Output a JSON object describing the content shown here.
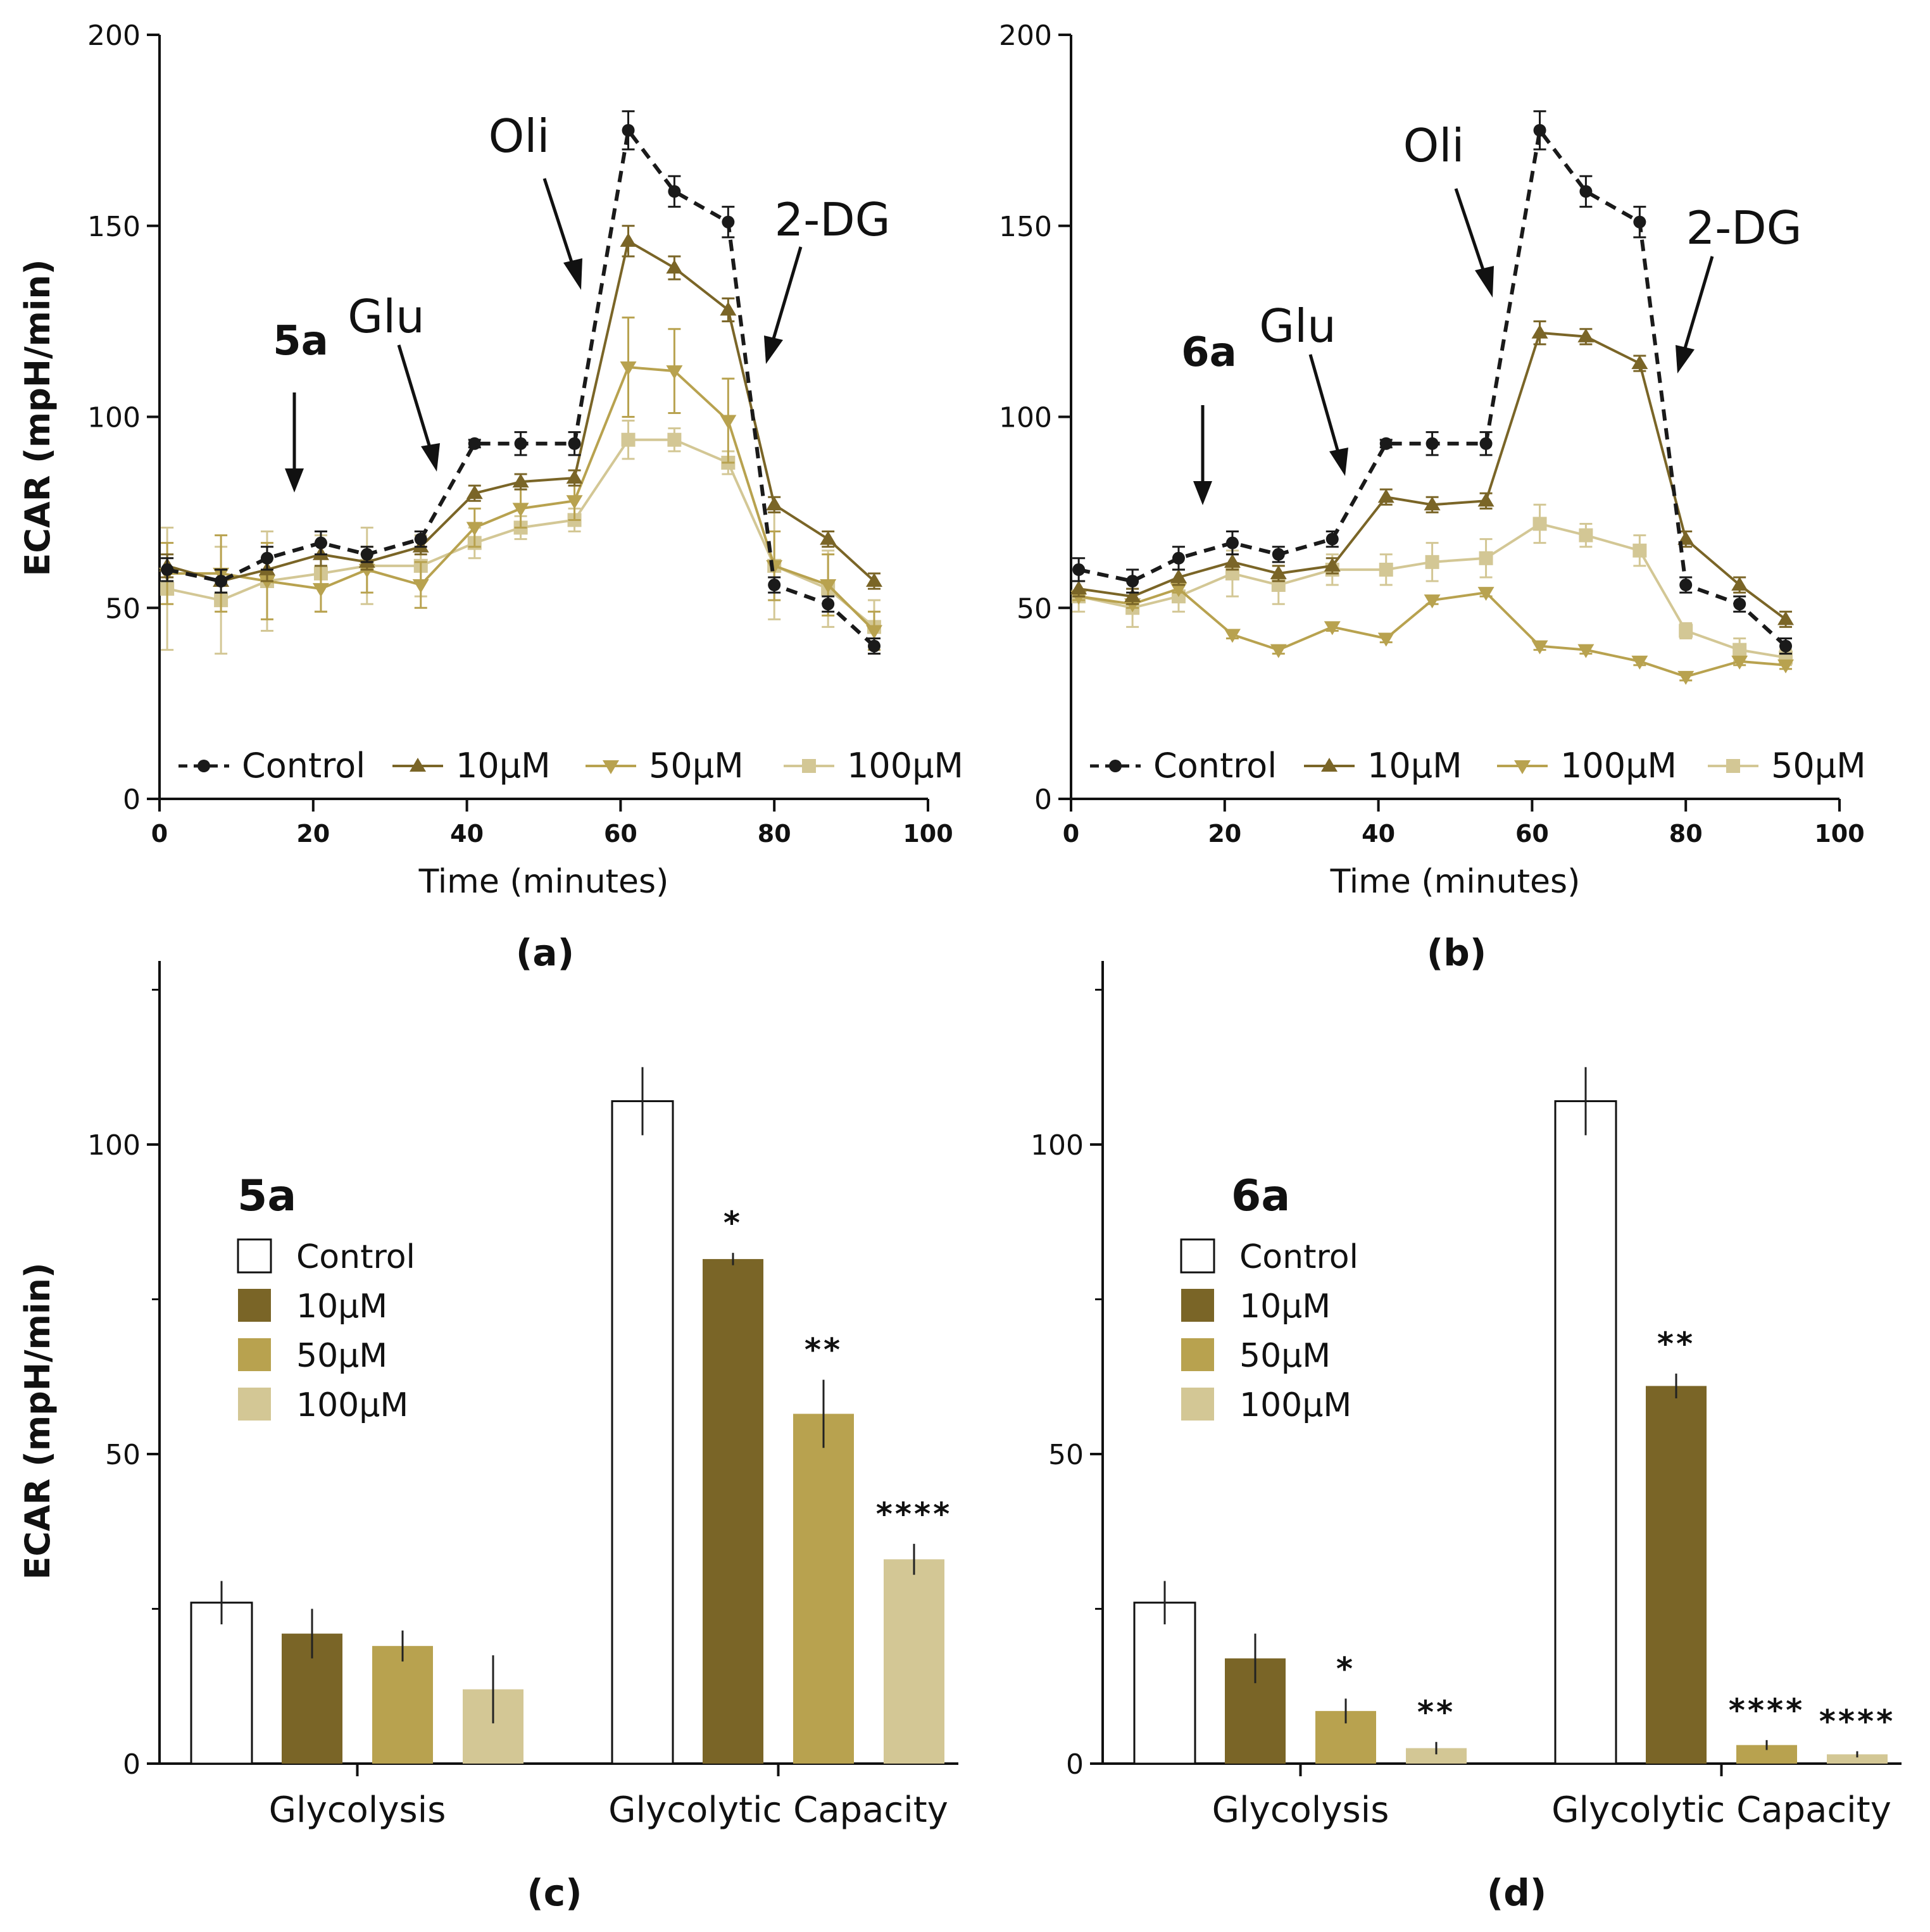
{
  "colors": {
    "control_line": "#1a1a1a",
    "control_bar": "#ffffff",
    "c10": "#7a6527",
    "c50": "#b8a24f",
    "c100": "#d3c795"
  },
  "chart_data": [
    {
      "id": "a",
      "type": "line",
      "panel_label": "(a)",
      "compound_label": "5a",
      "xlabel": "Time (minutes)",
      "ylabel": "ECAR (mpH/min)",
      "xlim": [
        0,
        100
      ],
      "ylim": [
        0,
        200
      ],
      "x_ticks": [
        "0",
        "20",
        "40",
        "60",
        "80",
        "100"
      ],
      "y_ticks": [
        "0",
        "50",
        "100",
        "150",
        "200"
      ],
      "annotations": [
        "Glu",
        "Oli",
        "2-DG"
      ],
      "x": [
        1,
        8,
        14,
        21,
        27,
        34,
        41,
        47,
        54,
        61,
        67,
        74,
        80,
        87,
        93
      ],
      "series": [
        {
          "name": "Control",
          "legend": "Control",
          "marker": "circle",
          "dashed": true,
          "values": [
            60,
            57,
            63,
            67,
            64,
            68,
            93,
            93,
            93,
            175,
            159,
            151,
            56,
            51,
            40
          ],
          "errors": [
            3,
            3,
            3,
            3,
            2,
            2,
            1,
            3,
            3,
            5,
            4,
            4,
            2,
            2,
            2
          ]
        },
        {
          "name": "10µM",
          "legend": "10µM",
          "marker": "triangle-up",
          "dashed": false,
          "values": [
            61,
            57,
            60,
            64,
            62,
            66,
            80,
            83,
            84,
            146,
            139,
            128,
            77,
            68,
            57
          ],
          "errors": [
            3,
            3,
            3,
            3,
            2,
            2,
            2,
            2,
            2,
            4,
            3,
            3,
            2,
            2,
            2
          ]
        },
        {
          "name": "50µM",
          "legend": "50µM",
          "marker": "triangle-down",
          "dashed": false,
          "values": [
            59,
            59,
            57,
            55,
            60,
            56,
            71,
            76,
            78,
            113,
            112,
            99,
            61,
            56,
            44
          ],
          "errors": [
            8,
            10,
            10,
            6,
            6,
            6,
            5,
            5,
            5,
            13,
            11,
            11,
            9,
            8,
            5
          ]
        },
        {
          "name": "100µM",
          "legend": "100µM",
          "marker": "square",
          "dashed": false,
          "values": [
            55,
            52,
            57,
            59,
            61,
            61,
            67,
            71,
            73,
            94,
            94,
            88,
            61,
            55,
            45
          ],
          "errors": [
            16,
            14,
            13,
            10,
            10,
            8,
            4,
            3,
            3,
            5,
            3,
            3,
            14,
            10,
            7
          ]
        }
      ]
    },
    {
      "id": "b",
      "type": "line",
      "panel_label": "(b)",
      "compound_label": "6a",
      "xlabel": "Time (minutes)",
      "ylabel": "",
      "xlim": [
        0,
        100
      ],
      "ylim": [
        0,
        200
      ],
      "x_ticks": [
        "0",
        "20",
        "40",
        "60",
        "80",
        "100"
      ],
      "y_ticks": [
        "0",
        "50",
        "100",
        "150",
        "200"
      ],
      "annotations": [
        "Glu",
        "Oli",
        "2-DG"
      ],
      "x": [
        1,
        8,
        14,
        21,
        27,
        34,
        41,
        47,
        54,
        61,
        67,
        74,
        80,
        87,
        93
      ],
      "series": [
        {
          "name": "Control",
          "legend": "Control",
          "marker": "circle",
          "dashed": true,
          "values": [
            60,
            57,
            63,
            67,
            64,
            68,
            93,
            93,
            93,
            175,
            159,
            151,
            56,
            51,
            40
          ],
          "errors": [
            3,
            3,
            3,
            3,
            2,
            2,
            1,
            3,
            3,
            5,
            4,
            4,
            2,
            2,
            2
          ]
        },
        {
          "name": "10µM",
          "legend": "10µM",
          "marker": "triangle-up",
          "dashed": false,
          "values": [
            55,
            53,
            58,
            62,
            59,
            61,
            79,
            77,
            78,
            122,
            121,
            114,
            68,
            56,
            47
          ],
          "errors": [
            2,
            2,
            2,
            2,
            2,
            2,
            2,
            2,
            2,
            3,
            2,
            2,
            2,
            2,
            2
          ]
        },
        {
          "name": "100µM",
          "legend": "100µM",
          "marker": "triangle-down",
          "dashed": false,
          "values": [
            53,
            51,
            55,
            43,
            39,
            45,
            42,
            52,
            54,
            40,
            39,
            36,
            32,
            36,
            35
          ],
          "errors": [
            1,
            1,
            1,
            1,
            1,
            1,
            1,
            1,
            1,
            1,
            1,
            1,
            1,
            1,
            1
          ]
        },
        {
          "name": "50µM",
          "legend": "50µM",
          "marker": "square",
          "dashed": false,
          "values": [
            53,
            50,
            53,
            59,
            56,
            60,
            60,
            62,
            63,
            72,
            69,
            65,
            44,
            39,
            37
          ],
          "errors": [
            4,
            5,
            4,
            6,
            5,
            4,
            4,
            5,
            5,
            5,
            3,
            4,
            2,
            3,
            2
          ]
        }
      ]
    },
    {
      "id": "c",
      "type": "bar",
      "panel_label": "(c)",
      "compound_label": "5a",
      "ylabel": "ECAR (mpH/min)",
      "ylim": [
        0,
        130
      ],
      "y_ticks": [
        "0",
        "50",
        "100"
      ],
      "categories": [
        "Glycolysis",
        "Glycolytic Capacity"
      ],
      "series": [
        {
          "name": "Control",
          "values": [
            26,
            107
          ],
          "errors": [
            3.5,
            5.5
          ],
          "significance": [
            "",
            ""
          ]
        },
        {
          "name": "10µM",
          "values": [
            21,
            81.5
          ],
          "errors": [
            4,
            1
          ],
          "significance": [
            "",
            "*"
          ]
        },
        {
          "name": "50µM",
          "values": [
            19,
            56.5
          ],
          "errors": [
            2.5,
            5.5
          ],
          "significance": [
            "",
            "**"
          ]
        },
        {
          "name": "100µM",
          "values": [
            12,
            33
          ],
          "errors": [
            5.5,
            2.5
          ],
          "significance": [
            "",
            "****"
          ]
        }
      ]
    },
    {
      "id": "d",
      "type": "bar",
      "panel_label": "(d)",
      "compound_label": "6a",
      "ylabel": "",
      "ylim": [
        0,
        130
      ],
      "y_ticks": [
        "0",
        "50",
        "100"
      ],
      "categories": [
        "Glycolysis",
        "Glycolytic Capacity"
      ],
      "series": [
        {
          "name": "Control",
          "values": [
            26,
            107
          ],
          "errors": [
            3.5,
            5.5
          ],
          "significance": [
            "",
            ""
          ]
        },
        {
          "name": "10µM",
          "values": [
            17,
            61
          ],
          "errors": [
            4,
            2
          ],
          "significance": [
            "",
            "**"
          ]
        },
        {
          "name": "50µM",
          "values": [
            8.5,
            3
          ],
          "errors": [
            2,
            0.8
          ],
          "significance": [
            "*",
            "****"
          ]
        },
        {
          "name": "100µM",
          "values": [
            2.5,
            1.5
          ],
          "errors": [
            1,
            0.5
          ],
          "significance": [
            "**",
            "****"
          ]
        }
      ]
    }
  ]
}
